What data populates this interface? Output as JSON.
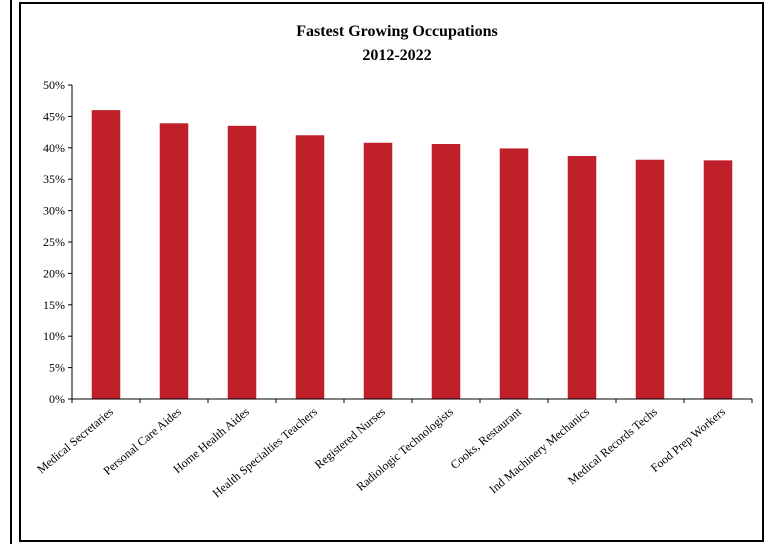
{
  "chart_data": {
    "type": "bar",
    "title": "Fastest Growing Occupations",
    "subtitle": "2012-2022",
    "xlabel": "",
    "ylabel": "",
    "ylim": [
      0,
      50
    ],
    "ytick_step": 5,
    "ytick_suffix": "%",
    "grid": false,
    "legend": "none",
    "bar_color": "#c0202a",
    "categories": [
      "Medical Secretaries",
      "Personal Care Aides",
      "Home Health Aides",
      "Health Specialties Teachers",
      "Registered Nurses",
      "Radiologic Technologists",
      "Cooks, Restaurant",
      "Ind Machinery Mechanics",
      "Medical Records Techs",
      "Food Prep Workers"
    ],
    "values": [
      46.0,
      43.9,
      43.5,
      42.0,
      40.8,
      40.6,
      39.9,
      38.7,
      38.1,
      38.0
    ]
  }
}
